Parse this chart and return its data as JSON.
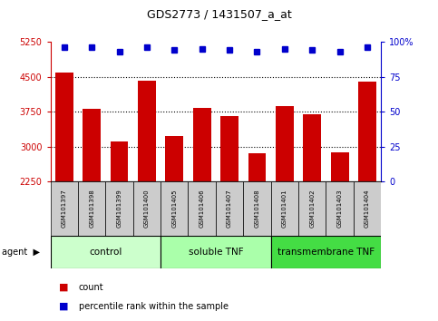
{
  "title": "GDS2773 / 1431507_a_at",
  "samples": [
    "GSM101397",
    "GSM101398",
    "GSM101399",
    "GSM101400",
    "GSM101405",
    "GSM101406",
    "GSM101407",
    "GSM101408",
    "GSM101401",
    "GSM101402",
    "GSM101403",
    "GSM101404"
  ],
  "bar_values": [
    4580,
    3800,
    3100,
    4420,
    3230,
    3820,
    3650,
    2860,
    3870,
    3700,
    2870,
    4390
  ],
  "percentile_values": [
    96,
    96,
    93,
    96,
    94,
    95,
    94,
    93,
    95,
    94,
    93,
    96
  ],
  "bar_color": "#cc0000",
  "dot_color": "#0000cc",
  "ylim_left": [
    2250,
    5250
  ],
  "ylim_right": [
    0,
    100
  ],
  "yticks_left": [
    2250,
    3000,
    3750,
    4500,
    5250
  ],
  "yticks_right": [
    0,
    25,
    50,
    75,
    100
  ],
  "grid_lines": [
    3000,
    3750,
    4500
  ],
  "groups": [
    {
      "label": "control",
      "start": 0,
      "end": 4,
      "color": "#ccffcc"
    },
    {
      "label": "soluble TNF",
      "start": 4,
      "end": 8,
      "color": "#aaffaa"
    },
    {
      "label": "transmembrane TNF",
      "start": 8,
      "end": 12,
      "color": "#44dd44"
    }
  ],
  "group_colors": [
    "#ccffcc",
    "#aaffaa",
    "#44dd44"
  ],
  "legend_count_color": "#cc0000",
  "legend_pct_color": "#0000cc",
  "sample_box_color": "#cccccc",
  "background_color": "#ffffff"
}
